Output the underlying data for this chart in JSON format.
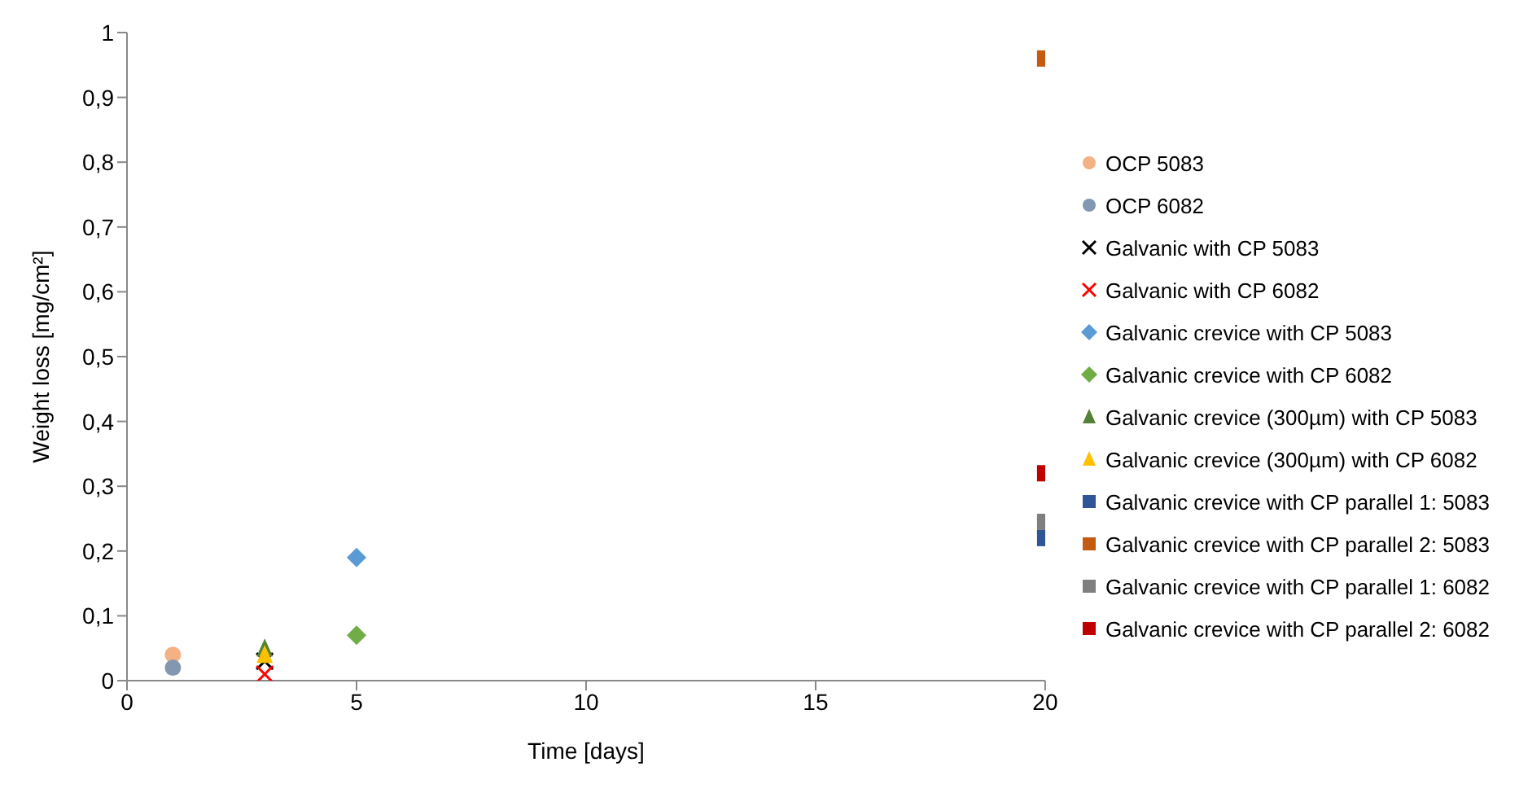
{
  "chart_data": {
    "type": "scatter",
    "xlabel": "Time [days]",
    "ylabel": "Weight loss [mg/cm²]",
    "xlim": [
      0,
      20
    ],
    "xticks": [
      0,
      5,
      10,
      15,
      20
    ],
    "ylim": [
      0,
      1
    ],
    "yticks": [
      0,
      {
        "value": 0.1,
        "label": "0,1"
      },
      {
        "value": 0.2,
        "label": "0,2"
      },
      {
        "value": 0.3,
        "label": "0,3"
      },
      {
        "value": 0.4,
        "label": "0,4"
      },
      {
        "value": 0.5,
        "label": "0,5"
      },
      {
        "value": 0.6,
        "label": "0,6"
      },
      {
        "value": 0.7,
        "label": "0,7"
      },
      {
        "value": 0.8,
        "label": "0,8"
      },
      {
        "value": 0.9,
        "label": "0,9"
      },
      1
    ],
    "grid": false,
    "legend": "right",
    "series": [
      {
        "name": "OCP 5083",
        "color": "#f4b183",
        "marker": "circle",
        "x": [
          1
        ],
        "values": [
          0.04
        ]
      },
      {
        "name": "OCP 6082",
        "color": "#8497b0",
        "marker": "circle",
        "x": [
          1
        ],
        "values": [
          0.02
        ]
      },
      {
        "name": "Galvanic with CP 5083",
        "color": "#000000",
        "marker": "cross",
        "x": [
          3
        ],
        "values": [
          0.03
        ]
      },
      {
        "name": "Galvanic with CP 6082",
        "color": "#ff0000",
        "marker": "cross",
        "x": [
          3
        ],
        "values": [
          0.01
        ]
      },
      {
        "name": "Galvanic crevice with CP 5083",
        "color": "#5b9bd5",
        "marker": "diamond",
        "x": [
          5
        ],
        "values": [
          0.19
        ]
      },
      {
        "name": "Galvanic crevice with CP 6082",
        "color": "#70ad47",
        "marker": "diamond",
        "x": [
          5
        ],
        "values": [
          0.07
        ]
      },
      {
        "name": "Galvanic crevice (300µm) with CP 5083",
        "color": "#548235",
        "marker": "triangle",
        "x": [
          3
        ],
        "values": [
          0.05
        ]
      },
      {
        "name": "Galvanic crevice (300µm) with CP 6082",
        "color": "#ffc000",
        "marker": "triangle",
        "x": [
          3
        ],
        "values": [
          0.04
        ]
      },
      {
        "name": "Galvanic crevice with CP parallel 1: 5083",
        "color": "#2f5597",
        "marker": "square",
        "x": [
          20
        ],
        "values": [
          0.22
        ]
      },
      {
        "name": "Galvanic crevice with CP parallel 2: 5083",
        "color": "#c55a11",
        "marker": "square",
        "x": [
          20
        ],
        "values": [
          0.96
        ]
      },
      {
        "name": "Galvanic crevice with CP parallel 1: 6082",
        "color": "#7f7f7f",
        "marker": "square",
        "x": [
          20
        ],
        "values": [
          0.245
        ]
      },
      {
        "name": "Galvanic crevice with CP parallel 2: 6082",
        "color": "#c00000",
        "marker": "square",
        "x": [
          20
        ],
        "values": [
          0.32
        ]
      }
    ]
  }
}
